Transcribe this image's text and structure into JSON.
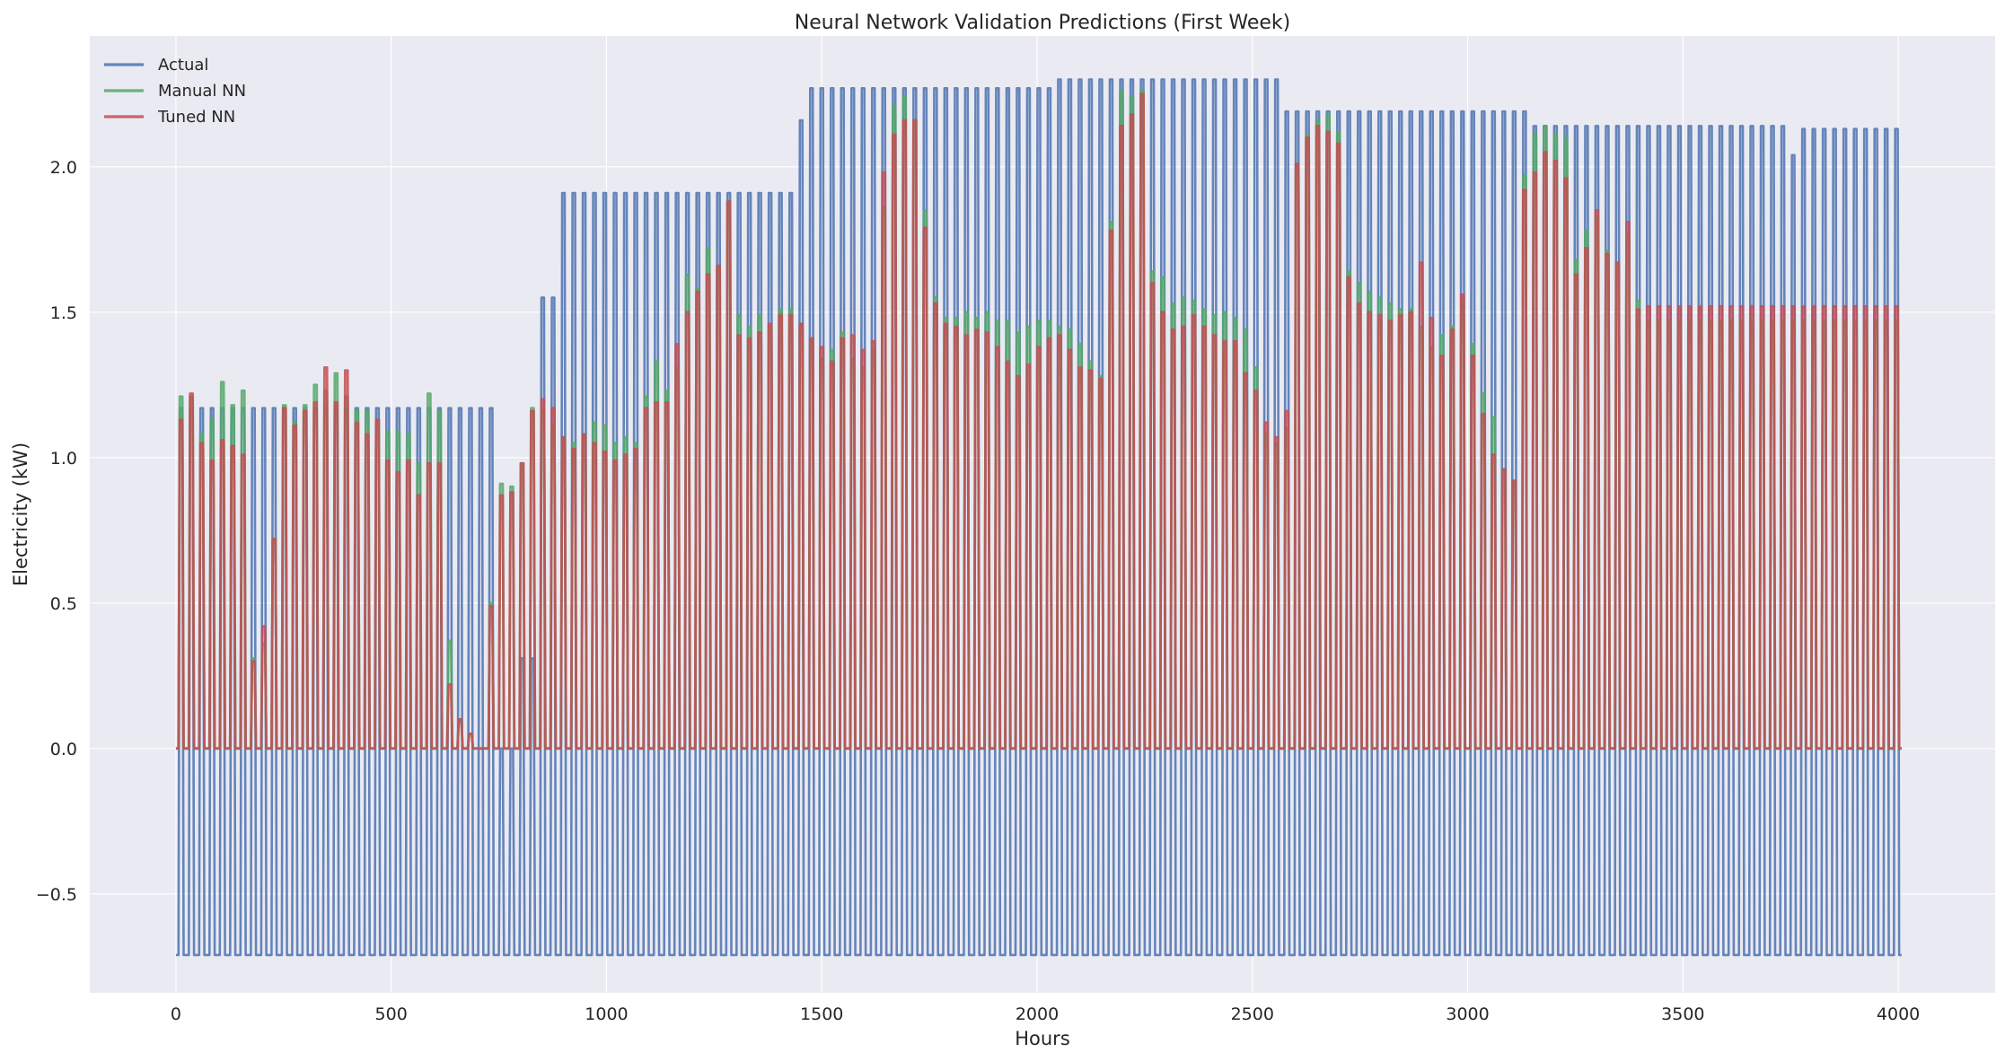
{
  "chart_data": {
    "type": "line",
    "title": "Neural Network Validation Predictions (First Week)",
    "xlabel": "Hours",
    "ylabel": "Electricity (kW)",
    "xlim": [
      -200,
      4225
    ],
    "ylim": [
      -0.84,
      2.45
    ],
    "xticks": [
      0,
      500,
      1000,
      1500,
      2000,
      2500,
      3000,
      3500,
      4000
    ],
    "yticks": [
      -0.5,
      0.0,
      0.5,
      1.0,
      1.5,
      2.0
    ],
    "ytick_labels": [
      "−0.5",
      "0.0",
      "0.5",
      "1.0",
      "1.5",
      "2.0"
    ],
    "grid": true,
    "legend_position": "top-left",
    "colors": {
      "Actual": "#4c72b0",
      "Manual NN": "#55a868",
      "Tuned NN": "#c44e52",
      "plot_bg": "#eaeaf2",
      "grid": "#ffffff"
    },
    "period_hours": 24,
    "baseline": {
      "actual": -0.71,
      "predictions": 0.0
    },
    "series": [
      {
        "name": "Actual",
        "daily_peaks": [
          {
            "from": 0,
            "to": 210,
            "value": 1.17
          },
          {
            "from": 210,
            "to": 220,
            "value": 0.95
          },
          {
            "from": 220,
            "to": 740,
            "value": 1.17
          },
          {
            "from": 740,
            "to": 800,
            "value": 0.0
          },
          {
            "from": 800,
            "to": 830,
            "value": 0.31
          },
          {
            "from": 830,
            "to": 850,
            "value": 1.03
          },
          {
            "from": 850,
            "to": 880,
            "value": 1.55
          },
          {
            "from": 880,
            "to": 1430,
            "value": 1.91
          },
          {
            "from": 1430,
            "to": 1455,
            "value": 2.16
          },
          {
            "from": 1455,
            "to": 2030,
            "value": 2.27
          },
          {
            "from": 2030,
            "to": 2570,
            "value": 2.3
          },
          {
            "from": 2570,
            "to": 3150,
            "value": 2.19
          },
          {
            "from": 3150,
            "to": 3750,
            "value": 2.14
          },
          {
            "from": 3750,
            "to": 3770,
            "value": 2.04
          },
          {
            "from": 3770,
            "to": 4030,
            "value": 2.13
          }
        ]
      },
      {
        "name": "Manual NN",
        "daily_peaks": [
          1.21,
          1.21,
          1.08,
          1.13,
          1.26,
          1.18,
          1.23,
          0.31,
          0.36,
          0.72,
          1.18,
          1.12,
          1.18,
          1.25,
          1.23,
          1.29,
          1.21,
          1.16,
          1.16,
          1.13,
          1.09,
          1.09,
          1.08,
          0.98,
          1.22,
          1.16,
          0.37,
          0.1,
          0.05,
          0.0,
          0.5,
          0.91,
          0.9,
          0.98,
          1.17,
          1.16,
          1.11,
          1.07,
          1.05,
          1.08,
          1.12,
          1.11,
          1.05,
          1.07,
          1.05,
          1.21,
          1.33,
          1.23,
          1.31,
          1.63,
          1.58,
          1.72,
          1.65,
          1.88,
          1.49,
          1.45,
          1.49,
          1.45,
          1.51,
          1.51,
          1.46,
          1.41,
          1.34,
          1.37,
          1.43,
          1.34,
          1.31,
          1.37,
          1.86,
          2.21,
          2.24,
          2.16,
          1.85,
          1.55,
          1.48,
          1.48,
          1.5,
          1.48,
          1.5,
          1.47,
          1.47,
          1.43,
          1.45,
          1.47,
          1.47,
          1.45,
          1.44,
          1.39,
          1.33,
          1.28,
          1.81,
          2.26,
          2.24,
          2.26,
          1.64,
          1.62,
          1.53,
          1.55,
          1.54,
          1.51,
          1.49,
          1.5,
          1.48,
          1.44,
          1.31,
          1.08,
          1.05,
          1.1,
          2.01,
          2.11,
          2.16,
          2.18,
          2.12,
          1.64,
          1.6,
          1.57,
          1.55,
          1.53,
          1.51,
          1.51,
          1.45,
          1.38,
          1.42,
          1.45,
          1.53,
          1.39,
          1.22,
          1.14,
          0.96,
          0.92,
          1.97,
          2.11,
          2.14,
          2.11,
          2.1,
          1.68,
          1.78,
          1.82,
          1.71,
          1.67,
          1.77,
          1.54,
          1.47
        ]
      },
      {
        "name": "Tuned NN",
        "daily_peaks": [
          1.13,
          1.22,
          1.05,
          0.99,
          1.06,
          1.04,
          1.01,
          0.3,
          0.42,
          0.72,
          1.17,
          1.11,
          1.16,
          1.19,
          1.31,
          1.19,
          1.3,
          1.12,
          1.08,
          1.13,
          0.99,
          0.95,
          0.99,
          0.87,
          0.98,
          0.98,
          0.22,
          0.1,
          0.05,
          0.0,
          0.49,
          0.87,
          0.88,
          0.98,
          1.16,
          1.2,
          1.17,
          1.07,
          1.03,
          1.08,
          1.05,
          1.02,
          0.99,
          1.01,
          1.03,
          1.17,
          1.19,
          1.19,
          1.39,
          1.5,
          1.57,
          1.63,
          1.66,
          1.88,
          1.42,
          1.41,
          1.43,
          1.46,
          1.49,
          1.49,
          1.46,
          1.41,
          1.38,
          1.33,
          1.41,
          1.42,
          1.37,
          1.4,
          1.98,
          2.11,
          2.16,
          2.16,
          1.79,
          1.53,
          1.46,
          1.45,
          1.42,
          1.44,
          1.43,
          1.38,
          1.33,
          1.28,
          1.32,
          1.38,
          1.41,
          1.42,
          1.37,
          1.31,
          1.3,
          1.27,
          1.78,
          2.14,
          2.18,
          2.25,
          1.6,
          1.5,
          1.44,
          1.45,
          1.49,
          1.45,
          1.42,
          1.4,
          1.4,
          1.29,
          1.23,
          1.12,
          1.07,
          1.16,
          2.01,
          2.1,
          2.14,
          2.12,
          2.08,
          1.62,
          1.53,
          1.5,
          1.49,
          1.47,
          1.49,
          1.5,
          1.67,
          1.48,
          1.35,
          1.44,
          1.56,
          1.35,
          1.15,
          1.01,
          0.96,
          0.92,
          1.92,
          1.98,
          2.05,
          2.02,
          1.96,
          1.63,
          1.72,
          1.85,
          1.7,
          1.67,
          1.81,
          1.51,
          1.52
        ]
      }
    ]
  }
}
